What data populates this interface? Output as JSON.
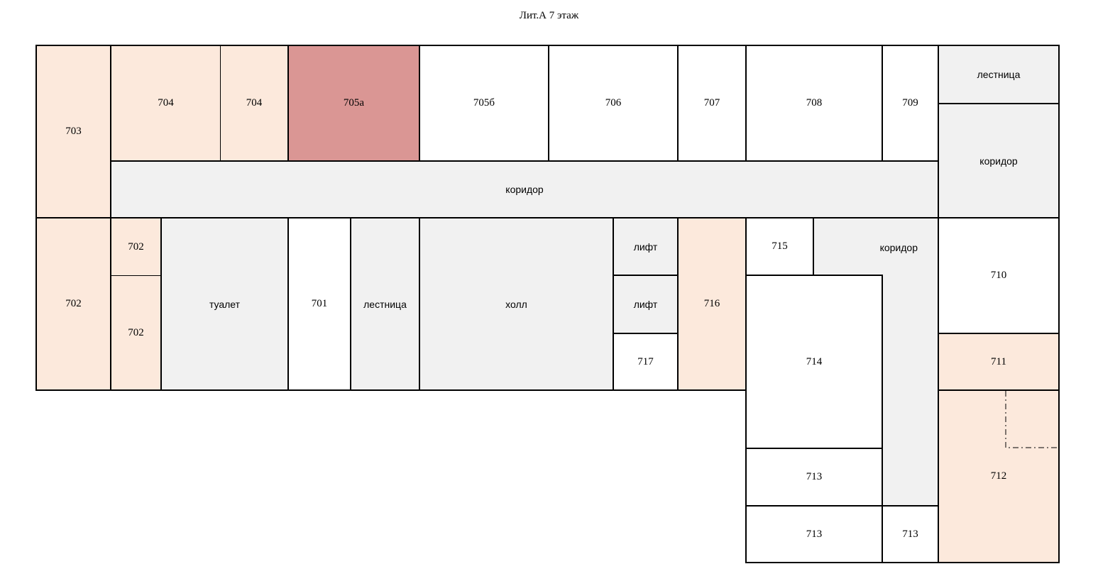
{
  "title": "Лит.А 7 этаж",
  "colors": {
    "office": "#fce9dc",
    "highlighted": "#da9694",
    "common": "#f1f1f1",
    "free": "#ffffff",
    "wall": "#000000"
  },
  "rooms": {
    "r703": "703",
    "r704a": "704",
    "r704b": "704",
    "r705a": "705а",
    "r705b": "705б",
    "r706": "706",
    "r707": "707",
    "r708": "708",
    "r709": "709",
    "stairs_top": "лестница",
    "corridor_right": "коридор",
    "corridor_main": "коридор",
    "r702_left": "702",
    "r702_top": "702",
    "r702_bottom": "702",
    "toilet": "туалет",
    "r701": "701",
    "stairs_mid": "лестница",
    "hall": "холл",
    "lift_1": "лифт",
    "lift_2": "лифт",
    "r717": "717",
    "r716": "716",
    "r715": "715",
    "corridor_east": "коридор",
    "r714": "714",
    "r710": "710",
    "r711": "711",
    "r712": "712",
    "r713_a": "713",
    "r713_b": "713",
    "r713_c": "713"
  }
}
